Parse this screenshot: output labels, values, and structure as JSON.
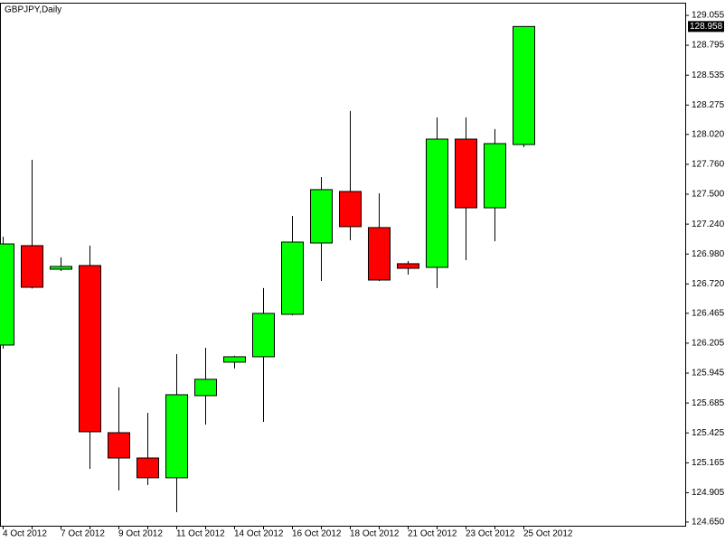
{
  "chart_data": {
    "type": "candlestick",
    "title": "GBPJPY,Daily",
    "categories": [
      "4 Oct 2012",
      null,
      "7 Oct 2012",
      null,
      "9 Oct 2012",
      null,
      "11 Oct 2012",
      null,
      "14 Oct 2012",
      null,
      "16 Oct 2012",
      null,
      "18 Oct 2012",
      null,
      "21 Oct 2012",
      null,
      "23 Oct 2012",
      null,
      "25 Oct 2012"
    ],
    "open": [
      126.189,
      127.053,
      126.848,
      126.88,
      125.427,
      125.207,
      125.035,
      125.749,
      126.04,
      126.087,
      126.456,
      127.076,
      127.524,
      127.21,
      126.896,
      126.864,
      127.979,
      127.382,
      127.932
    ],
    "high": [
      127.131,
      127.799,
      126.951,
      127.053,
      125.82,
      125.6,
      126.11,
      126.165,
      126.095,
      126.684,
      127.312,
      127.649,
      128.223,
      127.508,
      126.919,
      128.168,
      128.168,
      128.066,
      128.958
    ],
    "low": [
      126.157,
      126.68,
      126.833,
      125.113,
      124.925,
      124.972,
      124.736,
      125.498,
      125.985,
      125.521,
      126.448,
      126.746,
      127.1,
      126.746,
      126.801,
      126.684,
      126.927,
      127.092,
      127.909
    ],
    "close": [
      127.068,
      126.691,
      126.872,
      125.435,
      125.207,
      125.035,
      125.757,
      125.891,
      126.087,
      126.464,
      127.084,
      127.54,
      127.218,
      126.754,
      126.856,
      127.979,
      127.382,
      127.94,
      128.958
    ],
    "up_color": "#00ff00",
    "down_color": "#ff0000",
    "last_price": 128.958,
    "ylim": [
      124.618,
      129.157
    ],
    "yticks": [
      {
        "value": 124.65,
        "label": "124.650"
      },
      124.905,
      125.165,
      125.425,
      125.685,
      125.945,
      126.205,
      126.465,
      {
        "value": 126.72,
        "label": "126.720"
      },
      {
        "value": 126.98,
        "label": "126.980"
      },
      {
        "value": 127.24,
        "label": "127.240"
      },
      {
        "value": 127.5,
        "label": "127.500"
      },
      {
        "value": 127.76,
        "label": "127.760"
      },
      {
        "value": 128.02,
        "label": "128.020"
      },
      128.275,
      128.535,
      128.795,
      129.055
    ]
  }
}
